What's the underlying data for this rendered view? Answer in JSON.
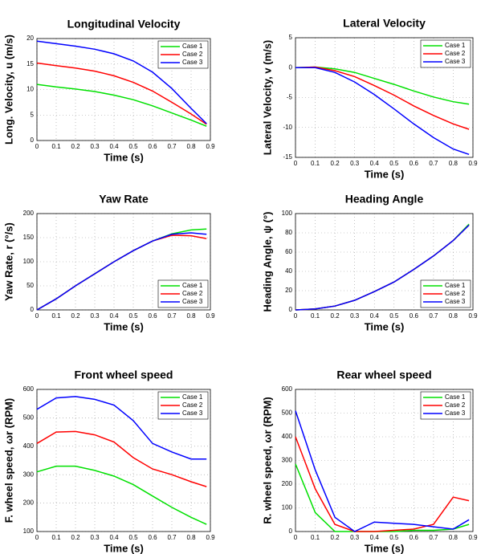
{
  "chart_data": [
    {
      "type": "line",
      "title": "Longitudinal Velocity",
      "xlabel": "Time (s)",
      "ylabel": "Long. Velocity, u (m/s)",
      "x": [
        0,
        0.1,
        0.2,
        0.3,
        0.4,
        0.5,
        0.6,
        0.7,
        0.8,
        0.88
      ],
      "series": [
        {
          "name": "Case 1",
          "color": "#00e000",
          "values": [
            11,
            10.5,
            10.1,
            9.6,
            8.9,
            8.0,
            6.8,
            5.4,
            4.0,
            2.8
          ]
        },
        {
          "name": "Case 2",
          "color": "#ff0000",
          "values": [
            15.2,
            14.7,
            14.2,
            13.6,
            12.7,
            11.4,
            9.7,
            7.5,
            5.2,
            3.2
          ]
        },
        {
          "name": "Case 3",
          "color": "#0000ff",
          "values": [
            19.5,
            19.0,
            18.5,
            17.9,
            17.0,
            15.6,
            13.4,
            10.2,
            6.3,
            3.3
          ]
        }
      ],
      "xlim": [
        0,
        0.9
      ],
      "xticks": [
        0,
        0.1,
        0.2,
        0.3,
        0.4,
        0.5,
        0.6,
        0.7,
        0.8,
        0.9
      ],
      "ylim": [
        0,
        20
      ],
      "yticks": [
        0,
        5,
        10,
        15,
        20
      ],
      "grid": true,
      "legend": "upper-right"
    },
    {
      "type": "line",
      "title": "Lateral Velocity",
      "xlabel": "Time (s)",
      "ylabel": "Lateral Velocity, v (m/s)",
      "x": [
        0,
        0.1,
        0.2,
        0.3,
        0.4,
        0.5,
        0.6,
        0.7,
        0.8,
        0.88
      ],
      "series": [
        {
          "name": "Case 1",
          "color": "#00e000",
          "values": [
            0,
            0.1,
            -0.2,
            -0.8,
            -1.8,
            -2.8,
            -3.9,
            -4.9,
            -5.7,
            -6.1
          ]
        },
        {
          "name": "Case 2",
          "color": "#ff0000",
          "values": [
            0,
            0.1,
            -0.5,
            -1.5,
            -3.0,
            -4.6,
            -6.4,
            -8.0,
            -9.4,
            -10.3
          ]
        },
        {
          "name": "Case 3",
          "color": "#0000ff",
          "values": [
            0,
            0,
            -0.8,
            -2.4,
            -4.5,
            -6.9,
            -9.4,
            -11.7,
            -13.6,
            -14.5
          ]
        }
      ],
      "xlim": [
        0,
        0.9
      ],
      "xticks": [
        0,
        0.1,
        0.2,
        0.3,
        0.4,
        0.5,
        0.6,
        0.7,
        0.8,
        0.9
      ],
      "ylim": [
        -15,
        5
      ],
      "yticks": [
        -15,
        -10,
        -5,
        0,
        5
      ],
      "grid": true,
      "legend": "upper-right"
    },
    {
      "type": "line",
      "title": "Yaw Rate",
      "xlabel": "Time (s)",
      "ylabel": "Yaw Rate, r (°/s)",
      "x": [
        0,
        0.1,
        0.2,
        0.3,
        0.4,
        0.5,
        0.6,
        0.7,
        0.8,
        0.88
      ],
      "series": [
        {
          "name": "Case 1",
          "color": "#00e000",
          "values": [
            0,
            23,
            50,
            75,
            100,
            123,
            143,
            158,
            166,
            168
          ]
        },
        {
          "name": "Case 2",
          "color": "#ff0000",
          "values": [
            0,
            23,
            50,
            75,
            100,
            123,
            143,
            155,
            154,
            148
          ]
        },
        {
          "name": "Case 3",
          "color": "#0000ff",
          "values": [
            0,
            23,
            50,
            75,
            100,
            123,
            143,
            157,
            160,
            157
          ]
        }
      ],
      "xlim": [
        0,
        0.9
      ],
      "xticks": [
        0,
        0.1,
        0.2,
        0.3,
        0.4,
        0.5,
        0.6,
        0.7,
        0.8,
        0.9
      ],
      "ylim": [
        0,
        200
      ],
      "yticks": [
        0,
        50,
        100,
        150,
        200
      ],
      "grid": true,
      "legend": "lower-right"
    },
    {
      "type": "line",
      "title": "Heading Angle",
      "xlabel": "Time (s)",
      "ylabel": "Heading Angle, ψ (°)",
      "x": [
        0,
        0.1,
        0.2,
        0.3,
        0.4,
        0.5,
        0.6,
        0.7,
        0.8,
        0.88
      ],
      "series": [
        {
          "name": "Case 1",
          "color": "#00e000",
          "values": [
            0,
            1,
            4,
            10,
            19,
            29,
            42,
            56,
            72,
            89
          ]
        },
        {
          "name": "Case 2",
          "color": "#ff0000",
          "values": [
            0,
            1,
            4,
            10,
            19,
            29,
            42,
            56,
            72,
            88
          ]
        },
        {
          "name": "Case 3",
          "color": "#0000ff",
          "values": [
            0,
            1,
            4,
            10,
            19,
            29,
            42,
            56,
            72,
            88
          ]
        }
      ],
      "xlim": [
        0,
        0.9
      ],
      "xticks": [
        0,
        0.1,
        0.2,
        0.3,
        0.4,
        0.5,
        0.6,
        0.7,
        0.8,
        0.9
      ],
      "ylim": [
        0,
        100
      ],
      "yticks": [
        0,
        20,
        40,
        60,
        80,
        100
      ],
      "grid": true,
      "legend": "lower-right"
    },
    {
      "type": "line",
      "title": "Front wheel speed",
      "xlabel": "Time (s)",
      "ylabel": "F. wheel speed, ωr (RPM)",
      "x": [
        0,
        0.1,
        0.2,
        0.3,
        0.4,
        0.5,
        0.6,
        0.7,
        0.8,
        0.88
      ],
      "series": [
        {
          "name": "Case 1",
          "color": "#00e000",
          "values": [
            310,
            330,
            330,
            315,
            295,
            265,
            225,
            185,
            150,
            125
          ]
        },
        {
          "name": "Case 2",
          "color": "#ff0000",
          "values": [
            410,
            450,
            452,
            440,
            415,
            360,
            320,
            300,
            275,
            258
          ]
        },
        {
          "name": "Case 3",
          "color": "#0000ff",
          "values": [
            530,
            570,
            575,
            565,
            545,
            490,
            410,
            380,
            355,
            355
          ]
        }
      ],
      "xlim": [
        0,
        0.9
      ],
      "xticks": [
        0,
        0.1,
        0.2,
        0.3,
        0.4,
        0.5,
        0.6,
        0.7,
        0.8,
        0.9
      ],
      "ylim": [
        100,
        600
      ],
      "yticks": [
        100,
        200,
        300,
        400,
        500,
        600
      ],
      "grid": true,
      "legend": "upper-right"
    },
    {
      "type": "line",
      "title": "Rear wheel speed",
      "xlabel": "Time (s)",
      "ylabel": "R. wheel speed, ωr (RPM)",
      "x": [
        0,
        0.1,
        0.2,
        0.3,
        0.4,
        0.5,
        0.6,
        0.7,
        0.8,
        0.88
      ],
      "series": [
        {
          "name": "Case 1",
          "color": "#00e000",
          "values": [
            285,
            80,
            0,
            0,
            0,
            0,
            5,
            5,
            10,
            30
          ]
        },
        {
          "name": "Case 2",
          "color": "#ff0000",
          "values": [
            400,
            180,
            30,
            0,
            0,
            5,
            10,
            30,
            145,
            130
          ]
        },
        {
          "name": "Case 3",
          "color": "#0000ff",
          "values": [
            510,
            260,
            60,
            0,
            40,
            35,
            30,
            20,
            10,
            50
          ]
        }
      ],
      "xlim": [
        0,
        0.9
      ],
      "xticks": [
        0,
        0.1,
        0.2,
        0.3,
        0.4,
        0.5,
        0.6,
        0.7,
        0.8,
        0.9
      ],
      "ylim": [
        0,
        600
      ],
      "yticks": [
        0,
        100,
        200,
        300,
        400,
        500,
        600
      ],
      "grid": true,
      "legend": "upper-right"
    }
  ]
}
